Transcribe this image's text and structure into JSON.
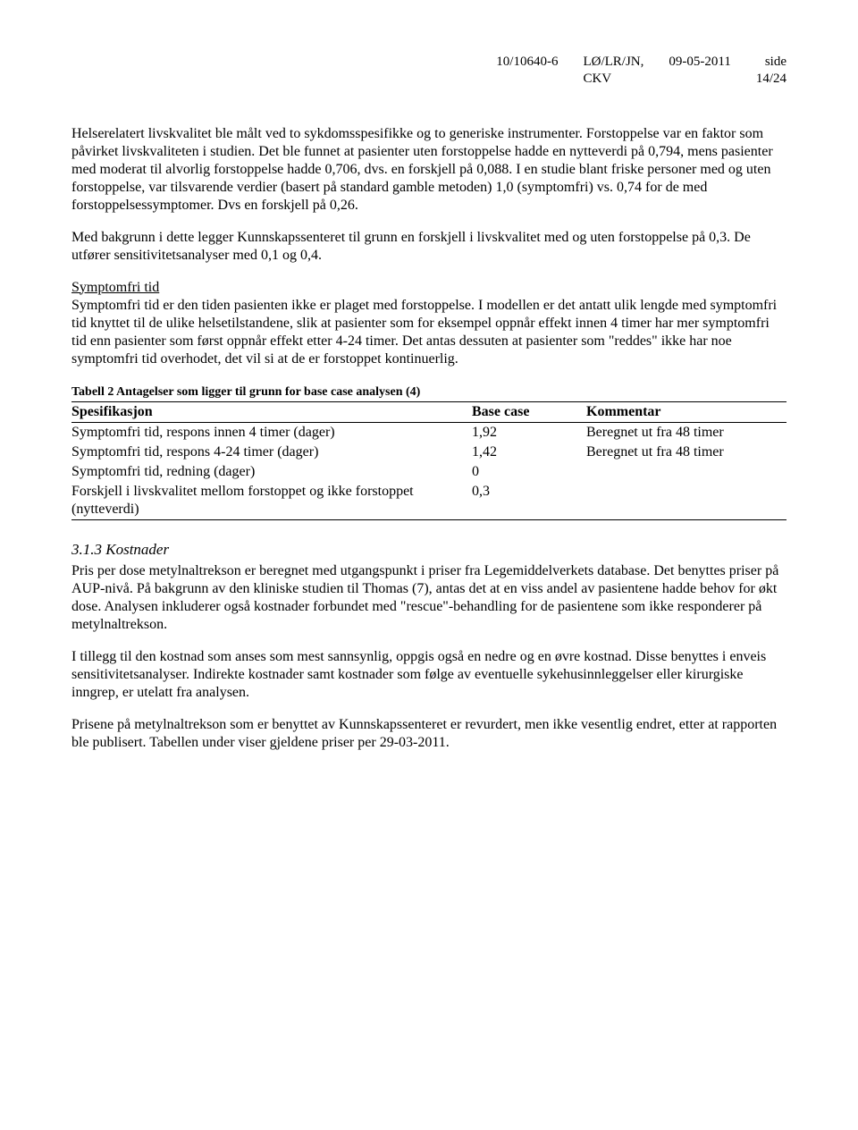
{
  "header": {
    "docnum": "10/10640-6",
    "codes": "LØ/LR/JN,\nCKV",
    "date": "09-05-2011",
    "page": "side\n14/24"
  },
  "p1": "Helserelatert livskvalitet ble målt ved to sykdomsspesifikke og to generiske instrumenter. Forstoppelse var en faktor som påvirket livskvaliteten i studien. Det ble funnet at pasienter uten forstoppelse hadde en nytteverdi på 0,794, mens pasienter med moderat til alvorlig forstoppelse hadde 0,706, dvs. en forskjell på 0,088. I en studie blant friske personer med og uten forstoppelse, var tilsvarende verdier (basert på standard gamble metoden) 1,0 (symptomfri) vs. 0,74 for de med forstoppelsessymptomer. Dvs en forskjell på 0,26.",
  "p2": "Med bakgrunn i dette legger Kunnskapssenteret til grunn en forskjell i livskvalitet med og uten forstoppelse på 0,3. De utfører sensitivitetsanalyser med 0,1 og 0,4.",
  "p3_title": "Symptomfri tid",
  "p3_body": "Symptomfri tid er den tiden pasienten ikke er plaget med forstoppelse. I modellen er det antatt ulik lengde med symptomfri tid knyttet til de ulike helsetilstandene, slik at pasienter som for eksempel oppnår effekt innen 4 timer har mer symptomfri tid enn pasienter som først oppnår effekt etter 4-24 timer. Det antas dessuten at pasienter som \"reddes\" ikke har noe symptomfri tid overhodet, det vil si at de er forstoppet kontinuerlig.",
  "table": {
    "caption": "Tabell 2 Antagelser som ligger til grunn for base case analysen (4)",
    "head": [
      "Spesifikasjon",
      "Base case",
      "Kommentar"
    ],
    "rows": [
      [
        "Symptomfri tid, respons innen 4 timer (dager)",
        "1,92",
        "Beregnet ut fra 48 timer"
      ],
      [
        "Symptomfri tid, respons 4-24 timer (dager)",
        "1,42",
        "Beregnet ut fra 48 timer"
      ],
      [
        "Symptomfri tid, redning (dager)",
        "0",
        ""
      ],
      [
        "Forskjell i livskvalitet mellom forstoppet og ikke forstoppet (nytteverdi)",
        "0,3",
        ""
      ]
    ],
    "col_widths": [
      "56%",
      "16%",
      "28%"
    ]
  },
  "h3": "3.1.3  Kostnader",
  "p4": "Pris per dose metylnaltrekson er beregnet med utgangspunkt i priser fra Legemiddelverkets database. Det benyttes priser på AUP-nivå. På bakgrunn av den kliniske studien til Thomas (7), antas det at en viss andel av pasientene hadde behov for økt dose. Analysen inkluderer også kostnader forbundet med \"rescue\"-behandling for de pasientene som ikke responderer på metylnaltrekson.",
  "p5": "I tillegg til den kostnad som anses som mest sannsynlig, oppgis også en nedre og en øvre kostnad. Disse benyttes i enveis sensitivitetsanalyser. Indirekte kostnader samt kostnader som følge av eventuelle sykehusinnleggelser eller kirurgiske inngrep, er utelatt fra analysen.",
  "p6": "Prisene på metylnaltrekson som er benyttet av Kunnskapssenteret er revurdert, men ikke vesentlig endret, etter at rapporten ble publisert. Tabellen under viser gjeldene priser per 29-03-2011."
}
